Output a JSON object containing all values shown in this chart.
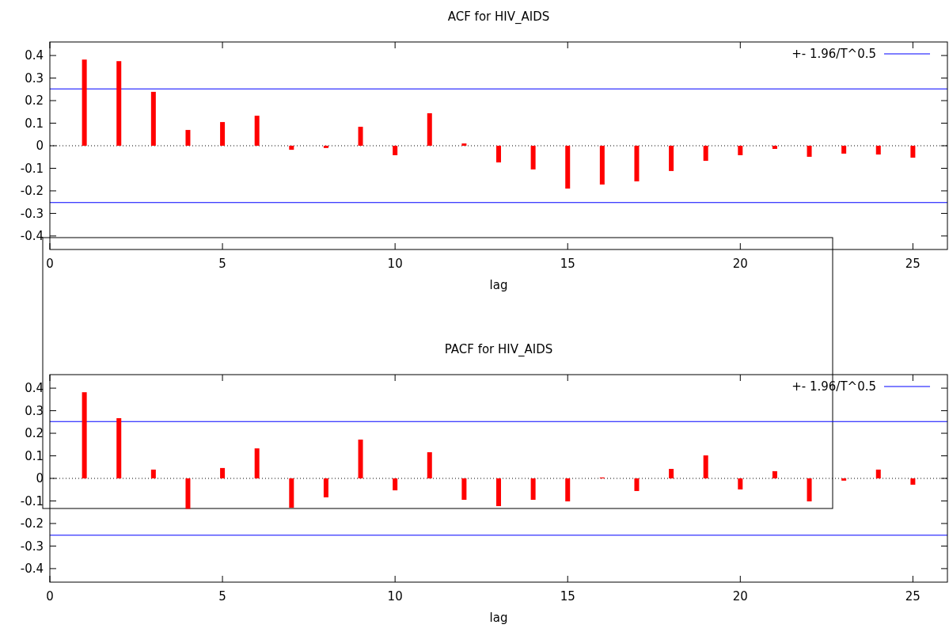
{
  "chart_data": [
    {
      "type": "bar",
      "title": "ACF for HIV_AIDS",
      "xlabel": "lag",
      "x": [
        1,
        2,
        3,
        4,
        5,
        6,
        7,
        8,
        9,
        10,
        11,
        12,
        13,
        14,
        15,
        16,
        17,
        18,
        19,
        20,
        21,
        22,
        23,
        24,
        25
      ],
      "series": [
        {
          "color": "#ff0000",
          "values": [
            0.382,
            0.375,
            0.239,
            0.07,
            0.105,
            0.133,
            -0.018,
            -0.01,
            0.084,
            -0.042,
            0.144,
            0.01,
            -0.074,
            -0.105,
            -0.19,
            -0.172,
            -0.158,
            -0.112,
            -0.067,
            -0.042,
            -0.014,
            -0.049,
            -0.035,
            -0.039,
            -0.053
          ]
        }
      ],
      "xlim": [
        0,
        26
      ],
      "xticks": [
        0,
        5,
        10,
        15,
        20,
        25
      ],
      "ylim": [
        -0.46,
        0.46
      ],
      "yticks": [
        -0.4,
        -0.3,
        -0.2,
        -0.1,
        0,
        0.1,
        0.2,
        0.3,
        0.4
      ],
      "ref_lines": [
        {
          "axis": "y",
          "value": 0.252,
          "label": "+- 1.96/T^0.5",
          "color": "#0000ff",
          "line_style": "solid"
        },
        {
          "axis": "y",
          "value": -0.252,
          "label": null,
          "color": "#0000ff",
          "line_style": "solid"
        },
        {
          "axis": "y",
          "value": 0,
          "label": null,
          "color": "#000000",
          "line_style": "dotted"
        }
      ],
      "legend": "top right",
      "grid": false
    },
    {
      "type": "bar",
      "title": "PACF for HIV_AIDS",
      "xlabel": "lag",
      "x": [
        1,
        2,
        3,
        4,
        5,
        6,
        7,
        8,
        9,
        10,
        11,
        12,
        13,
        14,
        15,
        16,
        17,
        18,
        19,
        20,
        21,
        22,
        23,
        24,
        25
      ],
      "series": [
        {
          "color": "#ff0000",
          "values": [
            0.382,
            0.267,
            0.039,
            -0.135,
            0.046,
            0.133,
            -0.13,
            -0.084,
            0.172,
            -0.053,
            0.116,
            -0.095,
            -0.123,
            -0.095,
            -0.102,
            0.004,
            -0.056,
            0.042,
            0.102,
            -0.049,
            0.032,
            -0.102,
            -0.01,
            0.039,
            -0.028
          ]
        }
      ],
      "xlim": [
        0,
        26
      ],
      "xticks": [
        0,
        5,
        10,
        15,
        20,
        25
      ],
      "ylim": [
        -0.46,
        0.46
      ],
      "yticks": [
        -0.4,
        -0.3,
        -0.2,
        -0.1,
        0,
        0.1,
        0.2,
        0.3,
        0.4
      ],
      "ref_lines": [
        {
          "axis": "y",
          "value": 0.252,
          "label": "+- 1.96/T^0.5",
          "color": "#0000ff",
          "line_style": "solid"
        },
        {
          "axis": "y",
          "value": -0.252,
          "label": null,
          "color": "#0000ff",
          "line_style": "solid"
        },
        {
          "axis": "y",
          "value": 0,
          "label": null,
          "color": "#000000",
          "line_style": "dotted"
        }
      ],
      "legend": "top right",
      "grid": false
    }
  ]
}
